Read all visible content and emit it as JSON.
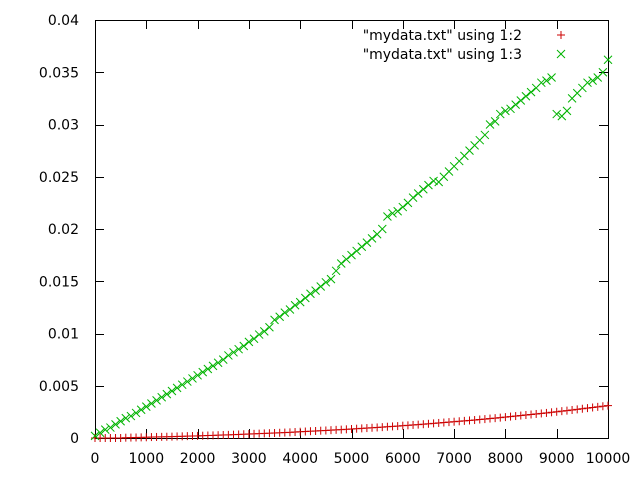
{
  "chart_data": {
    "type": "scatter",
    "xlim": [
      0,
      10000
    ],
    "ylim": [
      0,
      0.04
    ],
    "x_ticks": [
      "0",
      "1000",
      "2000",
      "3000",
      "4000",
      "5000",
      "6000",
      "7000",
      "8000",
      "9000",
      "10000"
    ],
    "y_ticks": [
      "0",
      "0.005",
      "0.01",
      "0.015",
      "0.02",
      "0.025",
      "0.03",
      "0.035",
      "0.04"
    ],
    "x_tick_values": [
      0,
      1000,
      2000,
      3000,
      4000,
      5000,
      6000,
      7000,
      8000,
      9000,
      10000
    ],
    "y_tick_values": [
      0,
      0.005,
      0.01,
      0.015,
      0.02,
      0.025,
      0.03,
      0.035,
      0.04
    ],
    "grid": false,
    "legend_position": "top-right",
    "series": [
      {
        "name": "\"mydata.txt\" using 1:2",
        "marker": "plus",
        "color": "#cc0000",
        "x": [
          0,
          100,
          200,
          300,
          400,
          500,
          600,
          700,
          800,
          900,
          1000,
          1100,
          1200,
          1300,
          1400,
          1500,
          1600,
          1700,
          1800,
          1900,
          2000,
          2100,
          2200,
          2300,
          2400,
          2500,
          2600,
          2700,
          2800,
          2900,
          3000,
          3100,
          3200,
          3300,
          3400,
          3500,
          3600,
          3700,
          3800,
          3900,
          4000,
          4100,
          4200,
          4300,
          4400,
          4500,
          4600,
          4700,
          4800,
          4900,
          5000,
          5100,
          5200,
          5300,
          5400,
          5500,
          5600,
          5700,
          5800,
          5900,
          6000,
          6100,
          6200,
          6300,
          6400,
          6500,
          6600,
          6700,
          6800,
          6900,
          7000,
          7100,
          7200,
          7300,
          7400,
          7500,
          7600,
          7700,
          7800,
          7900,
          8000,
          8100,
          8200,
          8300,
          8400,
          8500,
          8600,
          8700,
          8800,
          8900,
          9000,
          9100,
          9200,
          9300,
          9400,
          9500,
          9600,
          9700,
          9800,
          9900,
          10000
        ],
        "y": [
          0,
          0,
          0,
          0,
          0,
          0,
          3e-05,
          4e-05,
          5e-05,
          6e-05,
          7e-05,
          9e-05,
          0.0001,
          0.00011,
          0.00012,
          0.00013,
          0.00015,
          0.00016,
          0.00018,
          0.00019,
          0.0002,
          0.00022,
          0.00024,
          0.00025,
          0.00027,
          0.00029,
          0.0003,
          0.00032,
          0.00034,
          0.00036,
          0.00038,
          0.0004,
          0.00042,
          0.00044,
          0.00046,
          0.00048,
          0.0005,
          0.00052,
          0.00054,
          0.00057,
          0.0006,
          0.00062,
          0.00065,
          0.00067,
          0.0007,
          0.00072,
          0.00075,
          0.00078,
          0.0008,
          0.00083,
          0.00086,
          0.00089,
          0.00092,
          0.00095,
          0.00098,
          0.00101,
          0.00104,
          0.00108,
          0.00111,
          0.00114,
          0.00118,
          0.00121,
          0.00125,
          0.00128,
          0.00132,
          0.00136,
          0.0014,
          0.00144,
          0.00148,
          0.00152,
          0.00156,
          0.0016,
          0.00164,
          0.00168,
          0.00172,
          0.00177,
          0.00181,
          0.00186,
          0.0019,
          0.00195,
          0.002,
          0.00205,
          0.0021,
          0.00215,
          0.0022,
          0.00225,
          0.0023,
          0.00235,
          0.0024,
          0.00246,
          0.00251,
          0.00257,
          0.00262,
          0.00268,
          0.00274,
          0.0028,
          0.00286,
          0.00292,
          0.00298,
          0.00304,
          0.0031
        ]
      },
      {
        "name": "\"mydata.txt\" using 1:3",
        "marker": "cross",
        "color": "#00b300",
        "x": [
          0,
          100,
          200,
          300,
          400,
          500,
          600,
          700,
          800,
          900,
          1000,
          1100,
          1200,
          1300,
          1400,
          1500,
          1600,
          1700,
          1800,
          1900,
          2000,
          2100,
          2200,
          2300,
          2400,
          2500,
          2600,
          2700,
          2800,
          2900,
          3000,
          3100,
          3200,
          3300,
          3400,
          3500,
          3600,
          3700,
          3800,
          3900,
          4000,
          4100,
          4200,
          4300,
          4400,
          4500,
          4600,
          4700,
          4800,
          4900,
          5000,
          5100,
          5200,
          5300,
          5400,
          5500,
          5600,
          5700,
          5800,
          5900,
          6000,
          6100,
          6200,
          6300,
          6400,
          6500,
          6600,
          6700,
          6800,
          6900,
          7000,
          7100,
          7200,
          7300,
          7400,
          7500,
          7600,
          7700,
          7800,
          7900,
          8000,
          8100,
          8200,
          8300,
          8400,
          8500,
          8600,
          8700,
          8800,
          8900,
          9000,
          9100,
          9200,
          9300,
          9400,
          9500,
          9600,
          9700,
          9800,
          9900,
          10000
        ],
        "y": [
          0.0002,
          0.0005,
          0.0008,
          0.001,
          0.0013,
          0.0016,
          0.0019,
          0.0021,
          0.0024,
          0.0027,
          0.003,
          0.0033,
          0.0036,
          0.0039,
          0.0042,
          0.0045,
          0.0048,
          0.0051,
          0.0054,
          0.0057,
          0.006,
          0.0063,
          0.0066,
          0.0069,
          0.0072,
          0.0075,
          0.0079,
          0.0082,
          0.0085,
          0.0088,
          0.0092,
          0.0095,
          0.0099,
          0.0102,
          0.0106,
          0.0113,
          0.0116,
          0.012,
          0.0123,
          0.0127,
          0.013,
          0.0134,
          0.0138,
          0.0141,
          0.0145,
          0.0149,
          0.0152,
          0.016,
          0.0167,
          0.0171,
          0.0175,
          0.0179,
          0.0183,
          0.0187,
          0.0191,
          0.0195,
          0.02,
          0.0212,
          0.0215,
          0.0217,
          0.0221,
          0.0225,
          0.023,
          0.0234,
          0.0238,
          0.0242,
          0.0246,
          0.0245,
          0.025,
          0.0255,
          0.026,
          0.0265,
          0.027,
          0.0275,
          0.028,
          0.0285,
          0.029,
          0.03,
          0.0303,
          0.031,
          0.0313,
          0.0315,
          0.0319,
          0.0323,
          0.0327,
          0.0331,
          0.0335,
          0.034,
          0.0342,
          0.0345,
          0.031,
          0.0308,
          0.0313,
          0.0325,
          0.033,
          0.0335,
          0.034,
          0.0342,
          0.0345,
          0.035,
          0.0362
        ]
      }
    ]
  }
}
